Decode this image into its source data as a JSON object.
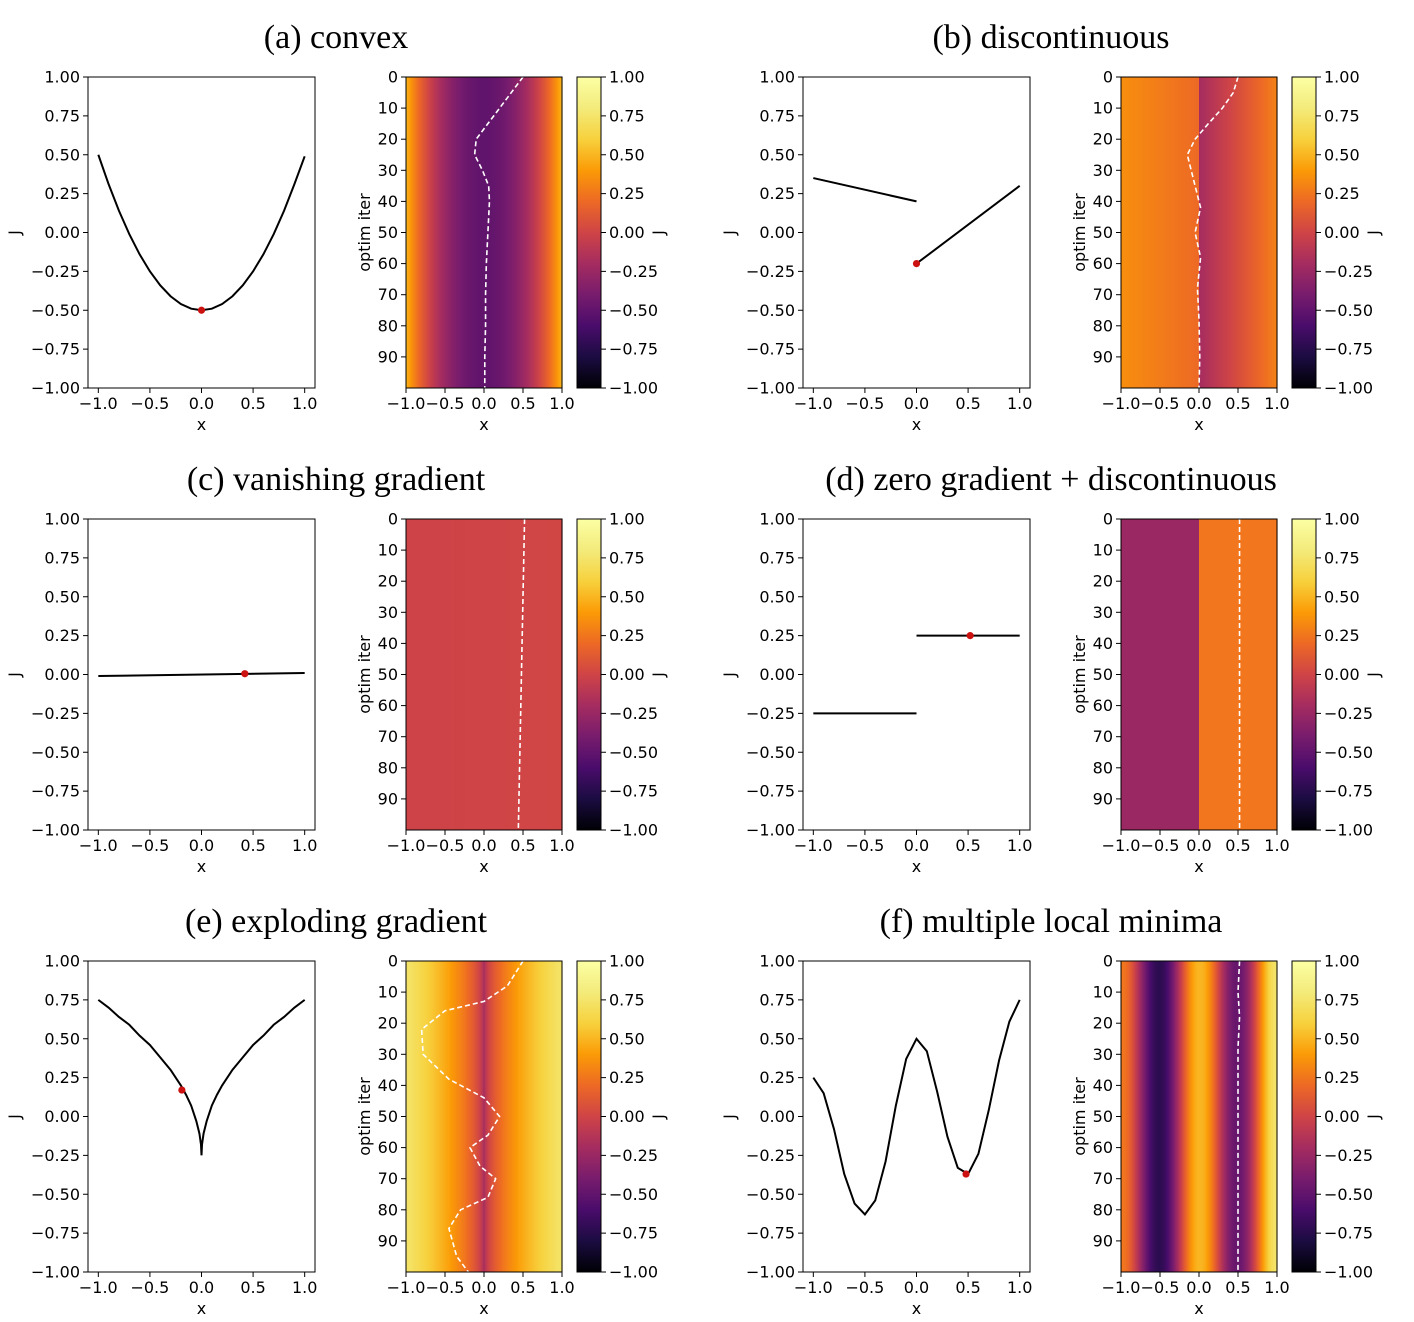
{
  "chart_data": [
    {
      "panel": "a",
      "title": "(a) convex",
      "line_plot": {
        "type": "line",
        "xlabel": "x",
        "ylabel": "J",
        "xlim": [
          -1.1,
          1.1
        ],
        "ylim": [
          -1.0,
          1.0
        ],
        "xticks": [
          "−1.0",
          "−0.5",
          "0.0",
          "0.5",
          "1.0"
        ],
        "yticks": [
          "1.00",
          "0.75",
          "0.50",
          "0.25",
          "0.00",
          "−0.25",
          "−0.50",
          "−0.75",
          "−1.00"
        ],
        "function": "x^2 - 0.5",
        "segments": [
          [
            [
              -1.0,
              0.5
            ],
            [
              -0.9,
              0.31
            ],
            [
              -0.8,
              0.14
            ],
            [
              -0.7,
              -0.01
            ],
            [
              -0.6,
              -0.14
            ],
            [
              -0.5,
              -0.25
            ],
            [
              -0.4,
              -0.34
            ],
            [
              -0.3,
              -0.41
            ],
            [
              -0.2,
              -0.46
            ],
            [
              -0.1,
              -0.49
            ],
            [
              0.0,
              -0.5
            ],
            [
              0.1,
              -0.49
            ],
            [
              0.2,
              -0.46
            ],
            [
              0.3,
              -0.41
            ],
            [
              0.4,
              -0.34
            ],
            [
              0.5,
              -0.25
            ],
            [
              0.6,
              -0.14
            ],
            [
              0.7,
              -0.01
            ],
            [
              0.8,
              0.14
            ],
            [
              0.9,
              0.31
            ],
            [
              1.0,
              0.49
            ]
          ]
        ],
        "marker": [
          0.0,
          -0.5
        ]
      },
      "heatmap": {
        "type": "heatmap",
        "xlabel": "x",
        "ylabel": "optim iter",
        "xlim": [
          -1.0,
          1.0
        ],
        "ylim": [
          0,
          100
        ],
        "xticks": [
          "−1.0",
          "−0.5",
          "0.0",
          "0.5",
          "1.0"
        ],
        "yticks": [
          "0",
          "10",
          "20",
          "30",
          "40",
          "50",
          "60",
          "70",
          "80",
          "90"
        ],
        "colormap": "inferno",
        "trajectory": [
          [
            0.5,
            0
          ],
          [
            0.35,
            5
          ],
          [
            0.2,
            10
          ],
          [
            0.05,
            15
          ],
          [
            -0.1,
            20
          ],
          [
            -0.12,
            25
          ],
          [
            -0.02,
            30
          ],
          [
            0.06,
            35
          ],
          [
            0.07,
            40
          ],
          [
            0.05,
            50
          ],
          [
            0.03,
            60
          ],
          [
            0.02,
            70
          ],
          [
            0.02,
            80
          ],
          [
            0.01,
            90
          ],
          [
            0.01,
            100
          ]
        ]
      },
      "colorbar": {
        "label": "J",
        "range": [
          -1.0,
          1.0
        ],
        "ticks": [
          "1.00",
          "0.75",
          "0.50",
          "0.25",
          "0.00",
          "−0.25",
          "−0.50",
          "−0.75",
          "−1.00"
        ]
      }
    },
    {
      "panel": "b",
      "title": "(b) discontinuous",
      "line_plot": {
        "type": "line",
        "xlabel": "x",
        "ylabel": "J",
        "xlim": [
          -1.1,
          1.1
        ],
        "ylim": [
          -1.0,
          1.0
        ],
        "xticks": [
          "−1.0",
          "−0.5",
          "0.0",
          "0.5",
          "1.0"
        ],
        "yticks": [
          "1.00",
          "0.75",
          "0.50",
          "0.25",
          "0.00",
          "−0.25",
          "−0.50",
          "−0.75",
          "−1.00"
        ],
        "segments": [
          [
            [
              -1.0,
              0.35
            ],
            [
              0.0,
              0.2
            ]
          ],
          [
            [
              0.0,
              -0.2
            ],
            [
              1.0,
              0.3
            ]
          ]
        ],
        "marker": [
          0.0,
          -0.2
        ]
      },
      "heatmap": {
        "type": "heatmap",
        "xlabel": "x",
        "ylabel": "optim iter",
        "xlim": [
          -1.0,
          1.0
        ],
        "ylim": [
          0,
          100
        ],
        "xticks": [
          "−1.0",
          "−0.5",
          "0.0",
          "0.5",
          "1.0"
        ],
        "yticks": [
          "0",
          "10",
          "20",
          "30",
          "40",
          "50",
          "60",
          "70",
          "80",
          "90"
        ],
        "colormap": "inferno",
        "trajectory": [
          [
            0.5,
            0
          ],
          [
            0.44,
            5
          ],
          [
            0.3,
            10
          ],
          [
            0.12,
            15
          ],
          [
            -0.05,
            20
          ],
          [
            -0.15,
            25
          ],
          [
            -0.05,
            35
          ],
          [
            0.02,
            42
          ],
          [
            -0.05,
            50
          ],
          [
            0.02,
            58
          ],
          [
            -0.02,
            68
          ],
          [
            0.0,
            78
          ],
          [
            0.01,
            90
          ],
          [
            0.0,
            100
          ]
        ]
      },
      "colorbar": {
        "label": "J",
        "range": [
          -1.0,
          1.0
        ],
        "ticks": [
          "1.00",
          "0.75",
          "0.50",
          "0.25",
          "0.00",
          "−0.25",
          "−0.50",
          "−0.75",
          "−1.00"
        ]
      }
    },
    {
      "panel": "c",
      "title": "(c) vanishing gradient",
      "line_plot": {
        "type": "line",
        "xlabel": "x",
        "ylabel": "J",
        "xlim": [
          -1.1,
          1.1
        ],
        "ylim": [
          -1.0,
          1.0
        ],
        "xticks": [
          "−1.0",
          "−0.5",
          "0.0",
          "0.5",
          "1.0"
        ],
        "yticks": [
          "1.00",
          "0.75",
          "0.50",
          "0.25",
          "0.00",
          "−0.25",
          "−0.50",
          "−0.75",
          "−1.00"
        ],
        "segments": [
          [
            [
              -1.0,
              -0.01
            ],
            [
              1.0,
              0.01
            ]
          ]
        ],
        "marker": [
          0.42,
          0.005
        ]
      },
      "heatmap": {
        "type": "heatmap",
        "xlabel": "x",
        "ylabel": "optim iter",
        "xlim": [
          -1.0,
          1.0
        ],
        "ylim": [
          0,
          100
        ],
        "xticks": [
          "−1.0",
          "−0.5",
          "0.0",
          "0.5",
          "1.0"
        ],
        "yticks": [
          "0",
          "10",
          "20",
          "30",
          "40",
          "50",
          "60",
          "70",
          "80",
          "90"
        ],
        "colormap": "inferno",
        "trajectory": [
          [
            0.52,
            0
          ],
          [
            0.5,
            25
          ],
          [
            0.48,
            50
          ],
          [
            0.46,
            75
          ],
          [
            0.44,
            100
          ]
        ]
      },
      "colorbar": {
        "label": "J",
        "range": [
          -1.0,
          1.0
        ],
        "ticks": [
          "1.00",
          "0.75",
          "0.50",
          "0.25",
          "0.00",
          "−0.25",
          "−0.50",
          "−0.75",
          "−1.00"
        ]
      }
    },
    {
      "panel": "d",
      "title": "(d) zero gradient + discontinuous",
      "line_plot": {
        "type": "line",
        "xlabel": "x",
        "ylabel": "J",
        "xlim": [
          -1.1,
          1.1
        ],
        "ylim": [
          -1.0,
          1.0
        ],
        "xticks": [
          "−1.0",
          "−0.5",
          "0.0",
          "0.5",
          "1.0"
        ],
        "yticks": [
          "1.00",
          "0.75",
          "0.50",
          "0.25",
          "0.00",
          "−0.25",
          "−0.50",
          "−0.75",
          "−1.00"
        ],
        "segments": [
          [
            [
              -1.0,
              -0.25
            ],
            [
              0.0,
              -0.25
            ]
          ],
          [
            [
              0.0,
              0.25
            ],
            [
              1.0,
              0.25
            ]
          ]
        ],
        "marker": [
          0.52,
          0.25
        ]
      },
      "heatmap": {
        "type": "heatmap",
        "xlabel": "x",
        "ylabel": "optim iter",
        "xlim": [
          -1.0,
          1.0
        ],
        "ylim": [
          0,
          100
        ],
        "xticks": [
          "−1.0",
          "−0.5",
          "0.0",
          "0.5",
          "1.0"
        ],
        "yticks": [
          "0",
          "10",
          "20",
          "30",
          "40",
          "50",
          "60",
          "70",
          "80",
          "90"
        ],
        "colormap": "inferno",
        "trajectory": [
          [
            0.52,
            0
          ],
          [
            0.52,
            100
          ]
        ]
      },
      "colorbar": {
        "label": "J",
        "range": [
          -1.0,
          1.0
        ],
        "ticks": [
          "1.00",
          "0.75",
          "0.50",
          "0.25",
          "0.00",
          "−0.25",
          "−0.50",
          "−0.75",
          "−1.00"
        ]
      }
    },
    {
      "panel": "e",
      "title": "(e) exploding gradient",
      "line_plot": {
        "type": "line",
        "xlabel": "x",
        "ylabel": "J",
        "xlim": [
          -1.1,
          1.1
        ],
        "ylim": [
          -1.0,
          1.0
        ],
        "xticks": [
          "−1.0",
          "−0.5",
          "0.0",
          "0.5",
          "1.0"
        ],
        "yticks": [
          "1.00",
          "0.75",
          "0.50",
          "0.25",
          "0.00",
          "−0.25",
          "−0.50",
          "−0.75",
          "−1.00"
        ],
        "function": "sqrt(|x|) - 0.25",
        "segments": [
          [
            [
              -1.0,
              0.75
            ],
            [
              -0.9,
              0.7
            ],
            [
              -0.8,
              0.64
            ],
            [
              -0.7,
              0.59
            ],
            [
              -0.6,
              0.52
            ],
            [
              -0.5,
              0.46
            ],
            [
              -0.4,
              0.38
            ],
            [
              -0.3,
              0.3
            ],
            [
              -0.2,
              0.2
            ],
            [
              -0.15,
              0.14
            ],
            [
              -0.1,
              0.07
            ],
            [
              -0.05,
              -0.03
            ],
            [
              -0.02,
              -0.11
            ],
            [
              -0.005,
              -0.18
            ],
            [
              0.0,
              -0.25
            ],
            [
              0.005,
              -0.18
            ],
            [
              0.02,
              -0.11
            ],
            [
              0.05,
              -0.03
            ],
            [
              0.1,
              0.07
            ],
            [
              0.15,
              0.14
            ],
            [
              0.2,
              0.2
            ],
            [
              0.3,
              0.3
            ],
            [
              0.4,
              0.38
            ],
            [
              0.5,
              0.46
            ],
            [
              0.6,
              0.52
            ],
            [
              0.7,
              0.59
            ],
            [
              0.8,
              0.64
            ],
            [
              0.9,
              0.7
            ],
            [
              1.0,
              0.75
            ]
          ]
        ],
        "marker": [
          -0.19,
          0.17
        ]
      },
      "heatmap": {
        "type": "heatmap",
        "xlabel": "x",
        "ylabel": "optim iter",
        "xlim": [
          -1.0,
          1.0
        ],
        "ylim": [
          0,
          100
        ],
        "xticks": [
          "−1.0",
          "−0.5",
          "0.0",
          "0.5",
          "1.0"
        ],
        "yticks": [
          "0",
          "10",
          "20",
          "30",
          "40",
          "50",
          "60",
          "70",
          "80",
          "90"
        ],
        "colormap": "inferno",
        "trajectory": [
          [
            0.5,
            0
          ],
          [
            0.3,
            8
          ],
          [
            0.0,
            13
          ],
          [
            -0.5,
            16
          ],
          [
            -0.8,
            22
          ],
          [
            -0.78,
            30
          ],
          [
            -0.45,
            38
          ],
          [
            0.0,
            44
          ],
          [
            0.2,
            50
          ],
          [
            0.05,
            56
          ],
          [
            -0.18,
            60
          ],
          [
            -0.05,
            66
          ],
          [
            0.15,
            70
          ],
          [
            0.05,
            76
          ],
          [
            -0.3,
            80
          ],
          [
            -0.45,
            86
          ],
          [
            -0.35,
            95
          ],
          [
            -0.2,
            100
          ]
        ]
      },
      "colorbar": {
        "label": "J",
        "range": [
          -1.0,
          1.0
        ],
        "ticks": [
          "1.00",
          "0.75",
          "0.50",
          "0.25",
          "0.00",
          "−0.25",
          "−0.50",
          "−0.75",
          "−1.00"
        ]
      }
    },
    {
      "panel": "f",
      "title": "(f) multiple local minima",
      "line_plot": {
        "type": "line",
        "xlabel": "x",
        "ylabel": "J",
        "xlim": [
          -1.1,
          1.1
        ],
        "ylim": [
          -1.0,
          1.0
        ],
        "xticks": [
          "−1.0",
          "−0.5",
          "0.0",
          "0.5",
          "1.0"
        ],
        "yticks": [
          "1.00",
          "0.75",
          "0.50",
          "0.25",
          "0.00",
          "−0.25",
          "−0.50",
          "−0.75",
          "−1.00"
        ],
        "function": "0.55*cos(2*pi*x) + 0.25*x - 0.05",
        "segments": [
          [
            [
              -1.0,
              0.25
            ],
            [
              -0.9,
              0.15
            ],
            [
              -0.8,
              -0.08
            ],
            [
              -0.7,
              -0.37
            ],
            [
              -0.6,
              -0.56
            ],
            [
              -0.5,
              -0.63
            ],
            [
              -0.4,
              -0.54
            ],
            [
              -0.3,
              -0.29
            ],
            [
              -0.2,
              0.07
            ],
            [
              -0.1,
              0.37
            ],
            [
              0.0,
              0.5
            ],
            [
              0.1,
              0.42
            ],
            [
              0.2,
              0.16
            ],
            [
              0.3,
              -0.13
            ],
            [
              0.4,
              -0.33
            ],
            [
              0.5,
              -0.37
            ],
            [
              0.6,
              -0.24
            ],
            [
              0.7,
              0.04
            ],
            [
              0.8,
              0.36
            ],
            [
              0.9,
              0.61
            ],
            [
              1.0,
              0.75
            ]
          ]
        ],
        "marker": [
          0.48,
          -0.37
        ]
      },
      "heatmap": {
        "type": "heatmap",
        "xlabel": "x",
        "ylabel": "optim iter",
        "xlim": [
          -1.0,
          1.0
        ],
        "ylim": [
          0,
          100
        ],
        "xticks": [
          "−1.0",
          "−0.5",
          "0.0",
          "0.5",
          "1.0"
        ],
        "yticks": [
          "0",
          "10",
          "20",
          "30",
          "40",
          "50",
          "60",
          "70",
          "80",
          "90"
        ],
        "colormap": "inferno",
        "trajectory": [
          [
            0.52,
            0
          ],
          [
            0.5,
            10
          ],
          [
            0.52,
            18
          ],
          [
            0.5,
            28
          ],
          [
            0.5,
            50
          ],
          [
            0.5,
            100
          ]
        ]
      },
      "colorbar": {
        "label": "J",
        "range": [
          -1.0,
          1.0
        ],
        "ticks": [
          "1.00",
          "0.75",
          "0.50",
          "0.25",
          "0.00",
          "−0.25",
          "−0.50",
          "−0.75",
          "−1.00"
        ]
      }
    }
  ],
  "colors": {
    "curve": "#000000",
    "marker": "#cc1111",
    "trajectory": "#ffffff"
  }
}
